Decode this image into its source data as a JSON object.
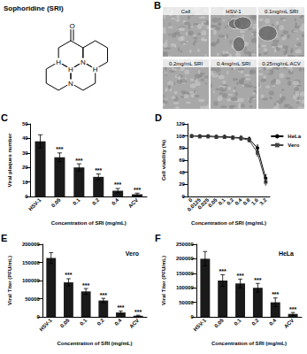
{
  "structure": {
    "title": "Sophoridine (SRI)",
    "atoms": [
      "O",
      "N",
      "N",
      "H",
      "H",
      "H"
    ]
  },
  "images": {
    "panel": "B",
    "labels": [
      "Cell",
      "HSV-1",
      "0.1mg/mL SRI",
      "0.2mg/mL SRI",
      "0.4mg/mL SRI",
      "0.25mg/mL ACV"
    ]
  },
  "chart_data": [
    {
      "panel": "C",
      "type": "bar",
      "categories": [
        "HSV-1",
        "0.05",
        "0.1",
        "0.2",
        "0.4",
        "ACV"
      ],
      "values": [
        38,
        27,
        20,
        13.5,
        4,
        1.5
      ],
      "errors": [
        4.5,
        3,
        2.5,
        2,
        1.5,
        0.8
      ],
      "annotations": [
        null,
        "***",
        "***",
        "***",
        "***",
        "***"
      ],
      "color": "#1a1a1a",
      "xlabel": "Concentration of SRI (mg/mL)",
      "ylabel": "Viral plaques number",
      "ylim": [
        0,
        50
      ],
      "yticks": [
        0,
        10,
        20,
        30,
        40,
        50
      ]
    },
    {
      "panel": "D",
      "type": "line",
      "categories": [
        "0",
        "0.0125",
        "0.025",
        "0.05",
        "0.1",
        "0.2",
        "0.4",
        "0.8",
        "1.6",
        "3.2"
      ],
      "series": [
        {
          "name": "HeLa",
          "color": "#000000",
          "marker": "circle",
          "values": [
            100,
            100,
            100,
            99,
            99,
            98,
            97,
            95,
            80,
            30
          ],
          "errors": [
            2,
            2,
            2,
            2,
            2,
            2,
            3,
            3,
            5,
            6
          ]
        },
        {
          "name": "Vero",
          "color": "#444444",
          "marker": "square",
          "values": [
            100,
            99,
            99,
            98,
            98,
            97,
            96,
            93,
            72,
            24
          ],
          "errors": [
            2,
            2,
            2,
            2,
            2,
            3,
            3,
            3,
            5,
            5
          ]
        }
      ],
      "xlabel": "Concentration of SRI (mg/mL)",
      "ylabel": "Cell viability (%)",
      "ylim": [
        0,
        120
      ],
      "yticks": [
        0,
        20,
        40,
        60,
        80,
        100,
        120
      ],
      "legend": "upper right"
    },
    {
      "panel": "E",
      "type": "bar",
      "title": "Vero",
      "categories": [
        "HSV-1",
        "0.05",
        "0.1",
        "0.2",
        "0.4",
        "ACV"
      ],
      "values": [
        162000,
        95000,
        70000,
        45000,
        12000,
        3000
      ],
      "errors": [
        15000,
        10000,
        8000,
        6000,
        4000,
        1500
      ],
      "annotations": [
        null,
        "***",
        "***",
        "***",
        "***",
        "***"
      ],
      "color": "#1a1a1a",
      "xlabel": "Concentration of SRI (mg/mL)",
      "ylabel": "Viral Titer (PFU/mL)",
      "ylim": [
        0,
        200000
      ],
      "yticks": [
        0,
        50000,
        100000,
        150000,
        200000
      ]
    },
    {
      "panel": "F",
      "type": "bar",
      "title": "HeLa",
      "categories": [
        "HSV-1",
        "0.05",
        "0.1",
        "0.2",
        "0.4",
        "ACV"
      ],
      "values": [
        200000,
        125000,
        115000,
        100000,
        50000,
        10000
      ],
      "errors": [
        25000,
        20000,
        15000,
        15000,
        15000,
        5000
      ],
      "annotations": [
        null,
        "***",
        "***",
        "***",
        "***",
        "***"
      ],
      "color": "#1a1a1a",
      "xlabel": "Concentration of SRI (mg/mL)",
      "ylabel": "Viral Titer (PFU/mL)",
      "ylim": [
        0,
        250000
      ],
      "yticks": [
        0,
        50000,
        100000,
        150000,
        200000,
        250000
      ]
    }
  ]
}
